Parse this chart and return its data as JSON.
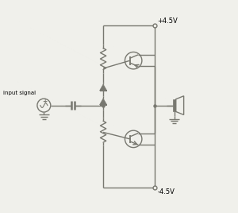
{
  "bg_color": "#f0f0eb",
  "line_color": "#787870",
  "line_width": 1.0,
  "vcc_label": "+4.5V",
  "vee_label": "-4.5V",
  "input_label": "input signal",
  "fig_width": 3.0,
  "fig_height": 2.68,
  "dpi": 100
}
